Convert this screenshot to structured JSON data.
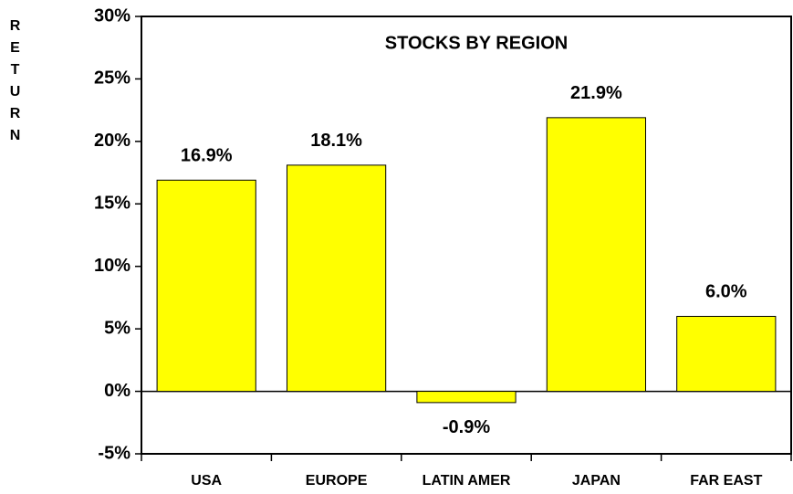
{
  "chart_data": {
    "type": "bar",
    "title": "STOCKS BY REGION",
    "y_label": "RETURN",
    "categories": [
      "USA",
      "EUROPE",
      "LATIN AMER",
      "JAPAN",
      "FAR EAST"
    ],
    "values": [
      16.9,
      18.1,
      -0.9,
      21.9,
      6.0
    ],
    "value_labels": [
      "16.9%",
      "18.1%",
      "-0.9%",
      "21.9%",
      "6.0%"
    ],
    "color": "#ffff00",
    "ylim": [
      -5,
      30
    ],
    "yticks": [
      {
        "value": -5,
        "label": "-5%"
      },
      {
        "value": 0,
        "label": "0%"
      },
      {
        "value": 5,
        "label": "5%"
      },
      {
        "value": 10,
        "label": "10%"
      },
      {
        "value": 15,
        "label": "15%"
      },
      {
        "value": 20,
        "label": "20%"
      },
      {
        "value": 25,
        "label": "25%"
      },
      {
        "value": 30,
        "label": "30%"
      }
    ],
    "grid": false
  }
}
